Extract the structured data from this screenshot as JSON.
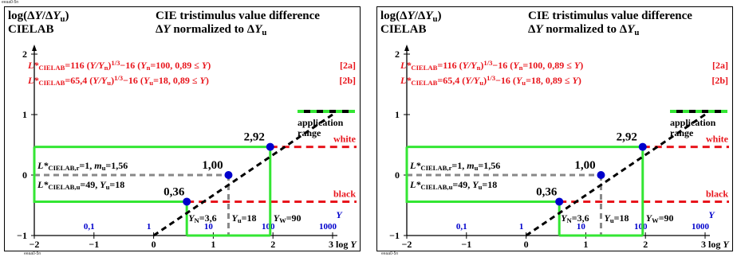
{
  "page": {
    "header_code": "eeaa0-5n",
    "footer_codes": [
      "eeaa0-5n",
      "eeaa0-5n"
    ]
  },
  "colors": {
    "red": "#e8141b",
    "green": "#33e633",
    "gray": "#888888",
    "blue": "#0000cc",
    "black": "#000000"
  },
  "chart_data": [
    {
      "type": "line",
      "top_left": "log(ΔY/ΔYu)",
      "space": "CIELAB",
      "title_line1": "CIE tristimulus value difference",
      "title_line2": "ΔY normalized to ΔYu",
      "eq1": "L*CIELAB=116 (Y/Yn)^1/3−16  (Yn=100, 0,89 ≤ Y)",
      "eq1_tag": "[2a]",
      "eq2": "L*CIELAB=65,4 (Y/Yu)^1/3−16  (Yu=18, 0,89 ≤ Y)",
      "eq2_tag": "[2b]",
      "xlabel": "log Y",
      "ylabel_small": "Y",
      "xlim": [
        -2,
        3
      ],
      "ylim": [
        -1,
        2
      ],
      "x_ticks": [
        -2,
        -1,
        0,
        1,
        2,
        3
      ],
      "y_ticks": [
        -1,
        0,
        1,
        2
      ],
      "y_tick_labels": [
        "−1",
        "0",
        "1",
        "2"
      ],
      "x_tick_labels": [
        "−2",
        "−1",
        "0",
        "1",
        "2",
        "3"
      ],
      "y_linear_ticks": [
        {
          "x": -1,
          "label": "0,1"
        },
        {
          "x": 0,
          "label": "1"
        },
        {
          "x": 1,
          "label": "10"
        },
        {
          "x": 2,
          "label": "100"
        },
        {
          "x": 3,
          "label": "1000"
        }
      ],
      "line_points": [
        {
          "x": 0,
          "y": -1
        },
        {
          "x": 3,
          "y": 1
        }
      ],
      "points": [
        {
          "x": 0.556,
          "y": -0.44,
          "label": "0,36"
        },
        {
          "x": 1.255,
          "y": 0,
          "label": "1,00"
        },
        {
          "x": 1.954,
          "y": 0.466,
          "label": "2,92"
        }
      ],
      "white_level": 0.466,
      "black_level": -0.44,
      "white_label": "white",
      "black_label": "black",
      "legend_label": "application range",
      "ref_r": "L*CIELAB,r=1, mu=1,56",
      "ref_u": "L*CIELAB,u=49, Yu=18",
      "yn_label": "YN=3,6",
      "yu_label": "Yu=18",
      "yw_label": "YW=90"
    },
    {
      "type": "line",
      "top_left": "log(ΔY/ΔYu)",
      "space": "CIELAB",
      "title_line1": "CIE tristimulus value difference",
      "title_line2": "ΔY normalized to ΔYu",
      "eq1": "L*CIELAB=116 (Y/Yn)^1/3−16  (Yn=100, 0,89 ≤ Y)",
      "eq1_tag": "[2a]",
      "eq2": "L*CIELAB=65,4 (Y/Yu)^1/3−16  (Yu=18, 0,89 ≤ Y)",
      "eq2_tag": "[2b]",
      "xlabel": "log Y",
      "ylabel_small": "Y",
      "xlim": [
        -2,
        3
      ],
      "ylim": [
        -1,
        2
      ],
      "x_ticks": [
        -2,
        -1,
        0,
        1,
        2,
        3
      ],
      "y_ticks": [
        -1,
        0,
        1,
        2
      ],
      "y_tick_labels": [
        "−1",
        "0",
        "1",
        "2"
      ],
      "x_tick_labels": [
        "−2",
        "−1",
        "0",
        "1",
        "2",
        "3"
      ],
      "y_linear_ticks": [
        {
          "x": -1,
          "label": "0,1"
        },
        {
          "x": 0,
          "label": "1"
        },
        {
          "x": 1,
          "label": "10"
        },
        {
          "x": 2,
          "label": "100"
        },
        {
          "x": 3,
          "label": "1000"
        }
      ],
      "line_points": [
        {
          "x": 0,
          "y": -1
        },
        {
          "x": 3,
          "y": 1
        }
      ],
      "points": [
        {
          "x": 0.556,
          "y": -0.44,
          "label": "0,36"
        },
        {
          "x": 1.255,
          "y": 0,
          "label": "1,00"
        },
        {
          "x": 1.954,
          "y": 0.466,
          "label": "2,92"
        }
      ],
      "white_level": 0.466,
      "black_level": -0.44,
      "white_label": "white",
      "black_label": "black",
      "legend_label": "application range",
      "ref_r": "L*CIELAB,r=1, mu=1,56",
      "ref_u": "L*CIELAB,u=49, Yu=18",
      "yn_label": "YN=3,6",
      "yu_label": "Yu=18",
      "yw_label": "YW=90"
    }
  ]
}
